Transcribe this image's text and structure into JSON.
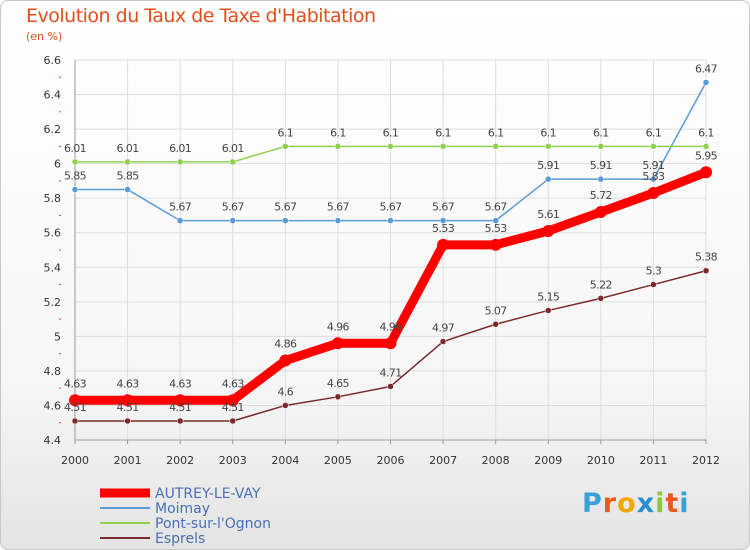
{
  "title": "Evolution du Taux de Taxe d'Habitation",
  "subtitle": "(en %)",
  "logo": {
    "text": "Proxiti",
    "colors": [
      "#3aa0d8",
      "#e85a1e",
      "#f0a800",
      "#2a8fd0",
      "#8dc63f",
      "#e85a1e",
      "#3aa0d8"
    ]
  },
  "chart_data": {
    "type": "line",
    "x": [
      "2000",
      "2001",
      "2002",
      "2003",
      "2004",
      "2005",
      "2006",
      "2007",
      "2008",
      "2009",
      "2010",
      "2011",
      "2012"
    ],
    "ylim": [
      4.4,
      6.6
    ],
    "yticks": [
      4.4,
      4.6,
      4.8,
      5,
      5.2,
      5.4,
      5.6,
      5.8,
      6,
      6.2,
      6.4,
      6.6
    ],
    "ytick_labels": [
      "4.4",
      "4.6",
      "4.8",
      "5",
      "5.2",
      "5.4",
      "5.6",
      "5.8",
      "6",
      "6.2",
      "6.4",
      "6.6"
    ],
    "grid": true,
    "legend_position": "bottom-left",
    "series": [
      {
        "name": "AUTREY-LE-VAY",
        "color": "#ff0000",
        "values": [
          4.63,
          4.63,
          4.63,
          4.63,
          4.86,
          4.96,
          4.96,
          5.53,
          5.53,
          5.61,
          5.72,
          5.83,
          5.95
        ],
        "labels": [
          "4.63",
          "4.63",
          "4.63",
          "4.63",
          "4.86",
          "4.96",
          "4.96",
          "5.53",
          "5.53",
          "5.61",
          "5.72",
          "5.83",
          "5.95"
        ]
      },
      {
        "name": "Moimay",
        "color": "#5b9bd5",
        "values": [
          5.85,
          5.85,
          5.67,
          5.67,
          5.67,
          5.67,
          5.67,
          5.67,
          5.67,
          5.91,
          5.91,
          5.91,
          6.47
        ],
        "labels": [
          "5.85",
          "5.85",
          "5.67",
          "5.67",
          "5.67",
          "5.67",
          "5.67",
          "5.67",
          "5.67",
          "5.91",
          "5.91",
          "5.91",
          "6.47"
        ]
      },
      {
        "name": "Pont-sur-l'Ognon",
        "color": "#8fd14f",
        "values": [
          6.01,
          6.01,
          6.01,
          6.01,
          6.1,
          6.1,
          6.1,
          6.1,
          6.1,
          6.1,
          6.1,
          6.1,
          6.1
        ],
        "labels": [
          "6.01",
          "6.01",
          "6.01",
          "6.01",
          "6.1",
          "6.1",
          "6.1",
          "6.1",
          "6.1",
          "6.1",
          "6.1",
          "6.1",
          "6.1"
        ]
      },
      {
        "name": "Esprels",
        "color": "#7a2a2a",
        "values": [
          4.51,
          4.51,
          4.51,
          4.51,
          4.6,
          4.65,
          4.71,
          4.97,
          5.07,
          5.15,
          5.22,
          5.3,
          5.38
        ],
        "labels": [
          "4.51",
          "4.51",
          "4.51",
          "4.51",
          "4.6",
          "4.65",
          "4.71",
          "4.97",
          "5.07",
          "5.15",
          "5.22",
          "5.3",
          "5.38"
        ]
      }
    ]
  }
}
